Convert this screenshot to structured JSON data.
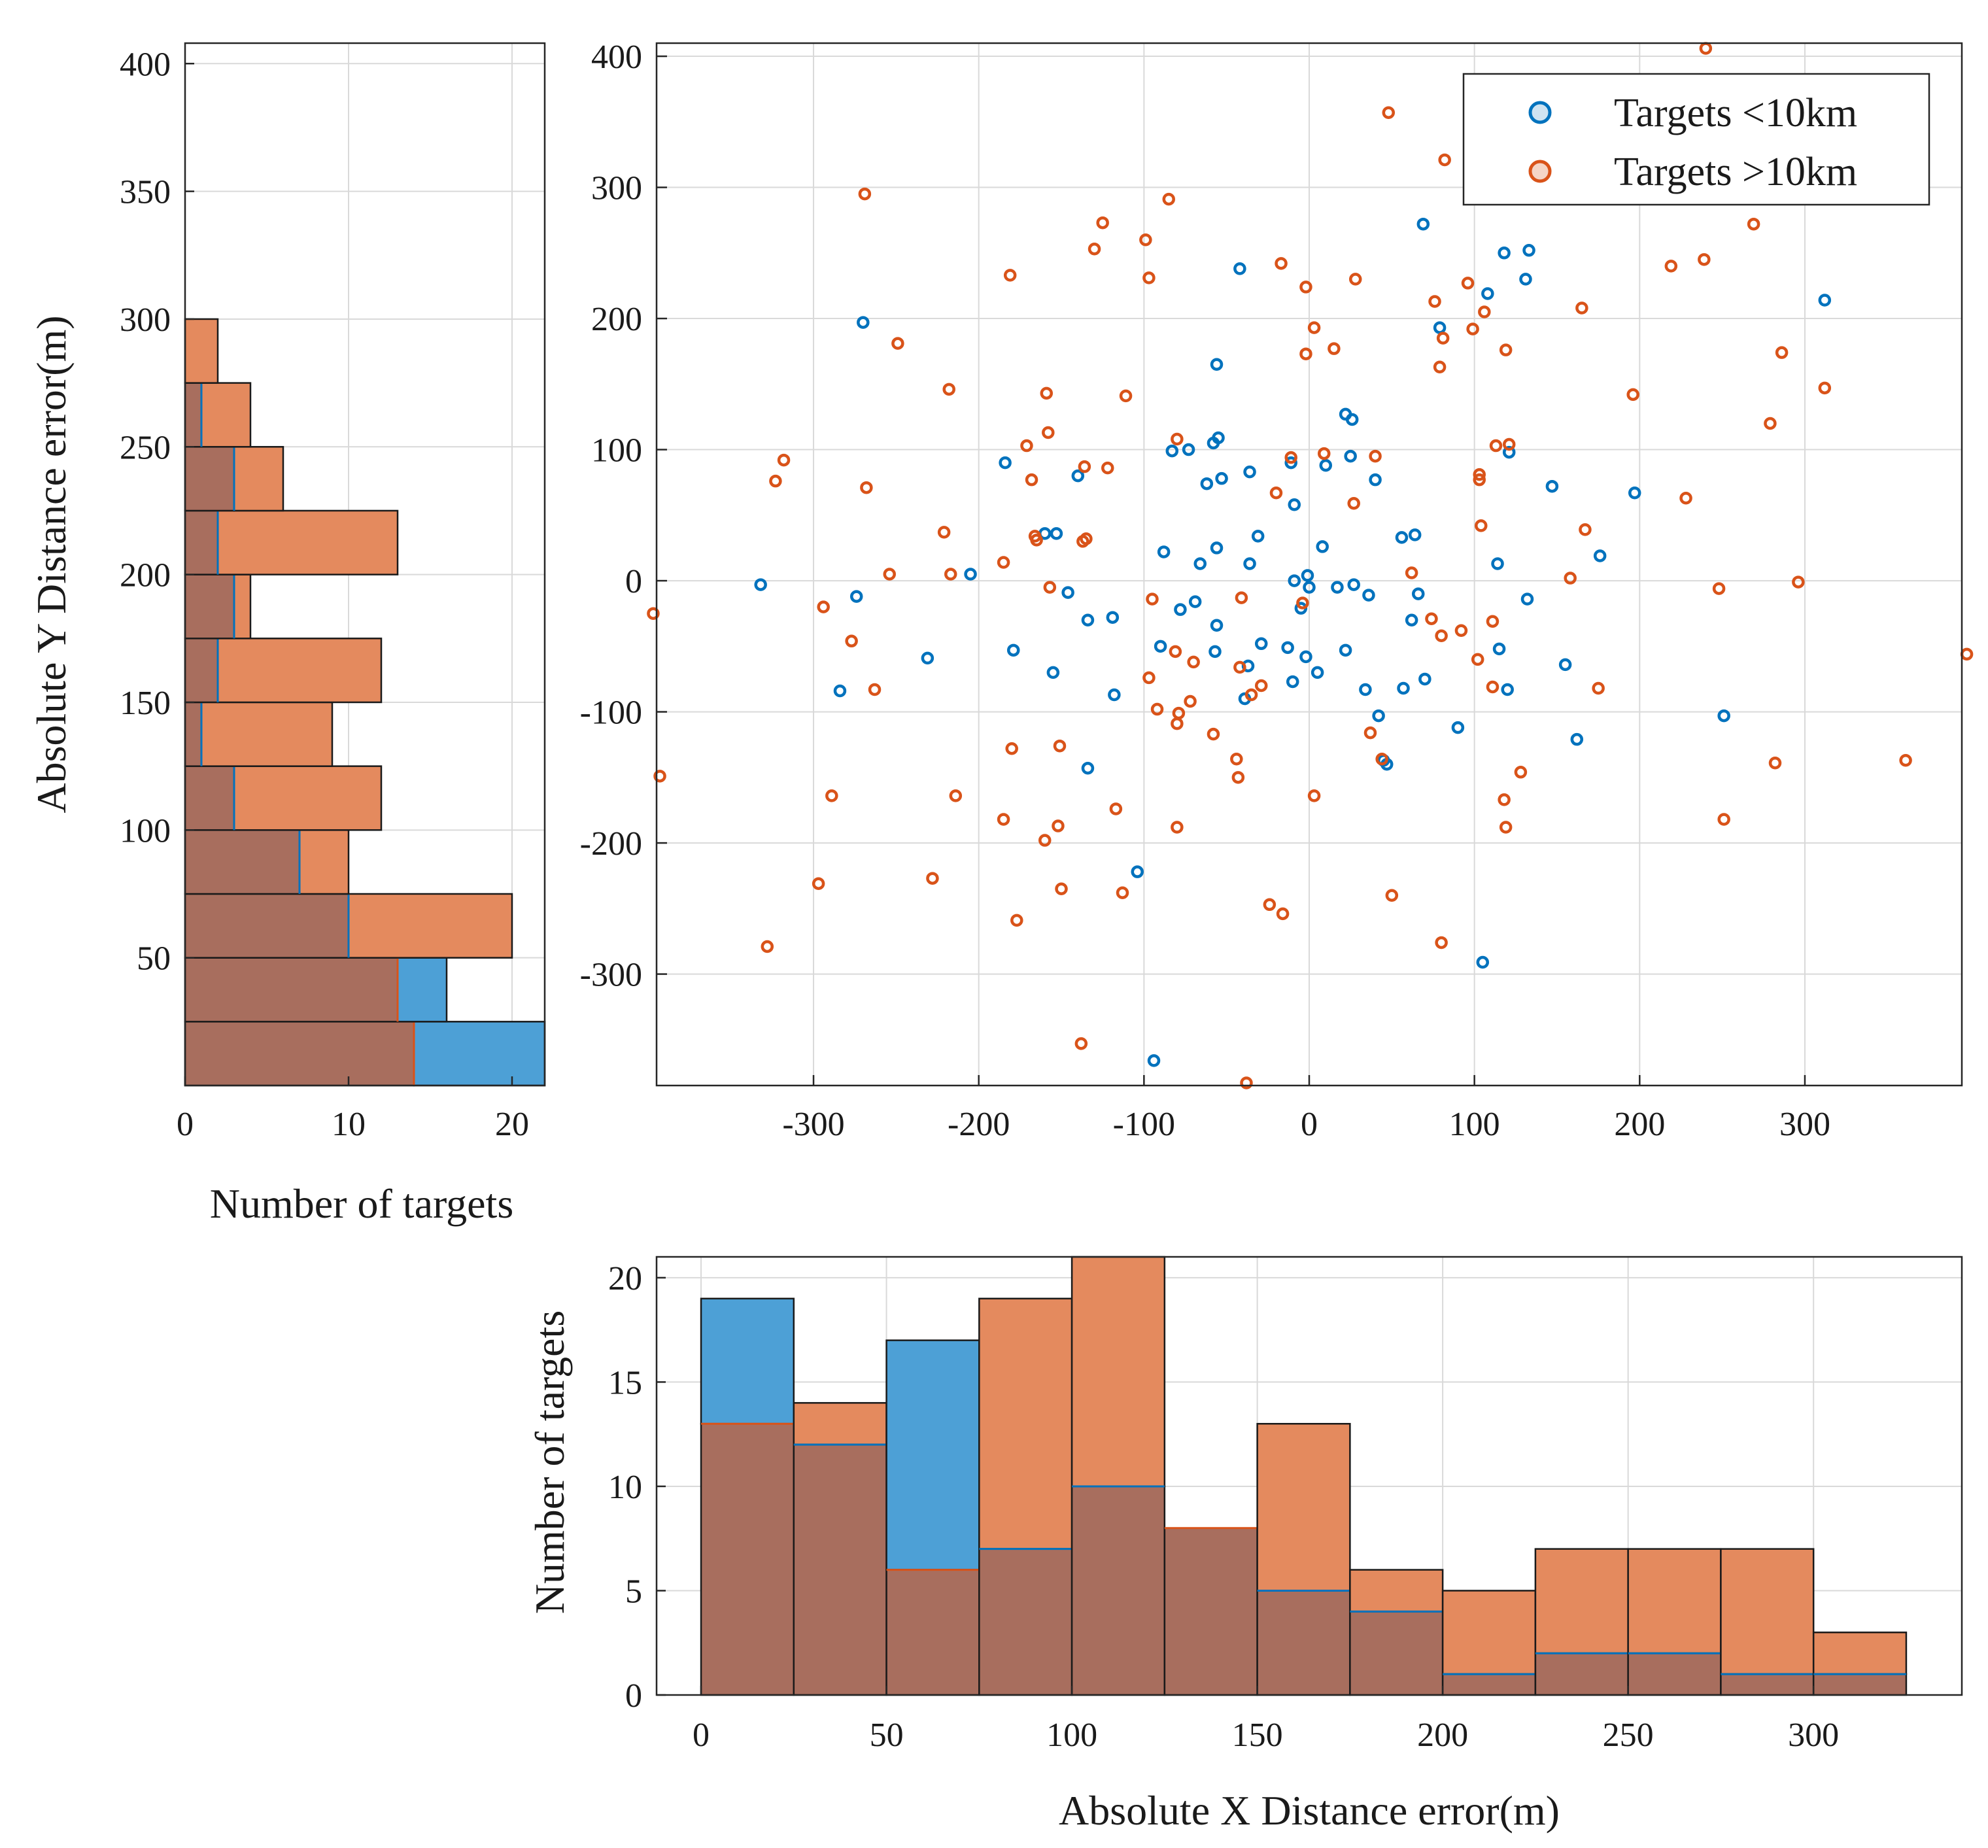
{
  "colors": {
    "series_a": "#0072BD",
    "series_a_fill": "#4DA0D6",
    "series_b": "#D95319",
    "series_b_fill": "#E48A5E",
    "overlap_fill": "#A86E5E"
  },
  "chart_data": [
    {
      "id": "scatter",
      "type": "scatter",
      "title": "",
      "xlabel": "",
      "ylabel": "",
      "xlim": [
        -395,
        395
      ],
      "ylim": [
        -385,
        410
      ],
      "xticks": [
        -300,
        -200,
        -100,
        0,
        100,
        200,
        300
      ],
      "yticks": [
        -300,
        -200,
        -100,
        0,
        100,
        200,
        300,
        400
      ],
      "grid": true,
      "legend": {
        "placement": "top-right",
        "entries": [
          "Targets <10km",
          "Targets >10km"
        ]
      },
      "series": [
        {
          "name": "Targets <10km",
          "points": [
            [
              -332,
              -3
            ],
            [
              -270,
              197
            ],
            [
              -274,
              -12
            ],
            [
              -284,
              -84
            ],
            [
              -231,
              -59
            ],
            [
              -205,
              5
            ],
            [
              -184,
              90
            ],
            [
              -179,
              -53
            ],
            [
              -160,
              36
            ],
            [
              -155,
              -70
            ],
            [
              -153,
              36
            ],
            [
              -146,
              -9
            ],
            [
              -140,
              80
            ],
            [
              -134,
              -30
            ],
            [
              -134,
              -143
            ],
            [
              -119,
              -28
            ],
            [
              -118,
              -87
            ],
            [
              -104,
              -222
            ],
            [
              -94,
              -366
            ],
            [
              -90,
              -50
            ],
            [
              -88,
              22
            ],
            [
              -83,
              99
            ],
            [
              -78,
              -22
            ],
            [
              -73,
              100
            ],
            [
              -69,
              -16
            ],
            [
              -66,
              13
            ],
            [
              -62,
              74
            ],
            [
              -58,
              105
            ],
            [
              -57,
              -54
            ],
            [
              -56,
              25
            ],
            [
              -56,
              -34
            ],
            [
              -56,
              165
            ],
            [
              -55,
              109
            ],
            [
              -53,
              78
            ],
            [
              -42,
              238
            ],
            [
              -39,
              -90
            ],
            [
              -37,
              -65
            ],
            [
              -36,
              13
            ],
            [
              -36,
              83
            ],
            [
              -31,
              34
            ],
            [
              -29,
              -48
            ],
            [
              -13,
              -51
            ],
            [
              -11,
              90
            ],
            [
              -10,
              -77
            ],
            [
              -9,
              0
            ],
            [
              -9,
              58
            ],
            [
              -5,
              -21
            ],
            [
              -1,
              4
            ],
            [
              -2,
              -58
            ],
            [
              0,
              -5
            ],
            [
              5,
              -70
            ],
            [
              8,
              26
            ],
            [
              10,
              88
            ],
            [
              17,
              -5
            ],
            [
              22,
              127
            ],
            [
              22,
              -53
            ],
            [
              25,
              95
            ],
            [
              26,
              123
            ],
            [
              27,
              -3
            ],
            [
              34,
              -83
            ],
            [
              36,
              -11
            ],
            [
              40,
              77
            ],
            [
              42,
              -103
            ],
            [
              45,
              -137
            ],
            [
              47,
              -140
            ],
            [
              56,
              33
            ],
            [
              57,
              -82
            ],
            [
              62,
              -30
            ],
            [
              64,
              35
            ],
            [
              66,
              -10
            ],
            [
              69,
              272
            ],
            [
              70,
              -75
            ],
            [
              79,
              193
            ],
            [
              90,
              -112
            ],
            [
              105,
              -291
            ],
            [
              108,
              219
            ],
            [
              114,
              13
            ],
            [
              115,
              -52
            ],
            [
              118,
              250
            ],
            [
              120,
              -83
            ],
            [
              121,
              98
            ],
            [
              131,
              230
            ],
            [
              132,
              -14
            ],
            [
              133,
              252
            ],
            [
              147,
              72
            ],
            [
              155,
              -64
            ],
            [
              162,
              -121
            ],
            [
              176,
              19
            ],
            [
              197,
              67
            ],
            [
              251,
              -103
            ],
            [
              312,
              214
            ]
          ]
        },
        {
          "name": "Targets >10km",
          "points": [
            [
              -397,
              -25
            ],
            [
              -393,
              -149
            ],
            [
              -323,
              76
            ],
            [
              -318,
              92
            ],
            [
              -328,
              -279
            ],
            [
              -297,
              -231
            ],
            [
              -294,
              -20
            ],
            [
              -289,
              -164
            ],
            [
              -277,
              -46
            ],
            [
              -269,
              295
            ],
            [
              -268,
              71
            ],
            [
              -263,
              -83
            ],
            [
              -254,
              5
            ],
            [
              -249,
              181
            ],
            [
              -228,
              -227
            ],
            [
              -221,
              37
            ],
            [
              -218,
              146
            ],
            [
              -217,
              5
            ],
            [
              -214,
              -164
            ],
            [
              -185,
              -182
            ],
            [
              -185,
              14
            ],
            [
              -181,
              233
            ],
            [
              -180,
              -128
            ],
            [
              -177,
              -259
            ],
            [
              -171,
              103
            ],
            [
              -168,
              77
            ],
            [
              -166,
              34
            ],
            [
              -165,
              31
            ],
            [
              -160,
              -198
            ],
            [
              -159,
              143
            ],
            [
              -158,
              113
            ],
            [
              -157,
              -5
            ],
            [
              -152,
              -187
            ],
            [
              -151,
              -126
            ],
            [
              -150,
              -235
            ],
            [
              -138,
              -353
            ],
            [
              -137,
              30
            ],
            [
              -136,
              87
            ],
            [
              -135,
              32
            ],
            [
              -130,
              253
            ],
            [
              -125,
              273
            ],
            [
              -122,
              86
            ],
            [
              -117,
              -174
            ],
            [
              -113,
              -238
            ],
            [
              -111,
              141
            ],
            [
              -99,
              260
            ],
            [
              -97,
              -74
            ],
            [
              -97,
              231
            ],
            [
              -95,
              -14
            ],
            [
              -92,
              -98
            ],
            [
              -85,
              291
            ],
            [
              -81,
              -54
            ],
            [
              -80,
              108
            ],
            [
              -80,
              -188
            ],
            [
              -80,
              -109
            ],
            [
              -79,
              -101
            ],
            [
              -72,
              -92
            ],
            [
              -70,
              -62
            ],
            [
              -58,
              -117
            ],
            [
              -44,
              -136
            ],
            [
              -43,
              -150
            ],
            [
              -42,
              -66
            ],
            [
              -41,
              -13
            ],
            [
              -38,
              -383
            ],
            [
              -35,
              -87
            ],
            [
              -29,
              -80
            ],
            [
              -24,
              -247
            ],
            [
              -20,
              67
            ],
            [
              -17,
              242
            ],
            [
              -16,
              -254
            ],
            [
              -11,
              94
            ],
            [
              -4,
              -17
            ],
            [
              -2,
              224
            ],
            [
              -2,
              173
            ],
            [
              3,
              193
            ],
            [
              3,
              -164
            ],
            [
              9,
              97
            ],
            [
              15,
              177
            ],
            [
              27,
              59
            ],
            [
              28,
              230
            ],
            [
              37,
              -116
            ],
            [
              40,
              95
            ],
            [
              44,
              -136
            ],
            [
              48,
              357
            ],
            [
              50,
              -240
            ],
            [
              62,
              6
            ],
            [
              74,
              -29
            ],
            [
              76,
              213
            ],
            [
              79,
              163
            ],
            [
              80,
              -42
            ],
            [
              80,
              -276
            ],
            [
              81,
              185
            ],
            [
              82,
              321
            ],
            [
              92,
              -38
            ],
            [
              96,
              227
            ],
            [
              99,
              192
            ],
            [
              102,
              -60
            ],
            [
              103,
              77
            ],
            [
              103,
              81
            ],
            [
              104,
              42
            ],
            [
              106,
              205
            ],
            [
              111,
              -31
            ],
            [
              111,
              -81
            ],
            [
              113,
              103
            ],
            [
              118,
              -167
            ],
            [
              119,
              -188
            ],
            [
              119,
              176
            ],
            [
              121,
              104
            ],
            [
              128,
              -146
            ],
            [
              158,
              2
            ],
            [
              165,
              208
            ],
            [
              167,
              39
            ],
            [
              175,
              -82
            ],
            [
              196,
              142
            ],
            [
              219,
              240
            ],
            [
              228,
              63
            ],
            [
              239,
              245
            ],
            [
              240,
              406
            ],
            [
              248,
              -6
            ],
            [
              251,
              -182
            ],
            [
              269,
              272
            ],
            [
              279,
              120
            ],
            [
              282,
              -139
            ],
            [
              286,
              174
            ],
            [
              296,
              -1
            ],
            [
              312,
              147
            ],
            [
              361,
              -137
            ],
            [
              398,
              -56
            ]
          ]
        }
      ]
    },
    {
      "id": "y-histogram",
      "type": "bar",
      "orientation": "horizontal",
      "title": "",
      "xlabel": "Number of targets",
      "ylabel": "Absolute Y Distance error(m)",
      "xlim": [
        0,
        22
      ],
      "ylim": [
        0,
        408
      ],
      "xticks": [
        0,
        10,
        20
      ],
      "yticks": [
        50,
        100,
        150,
        200,
        250,
        300,
        350,
        400
      ],
      "bin_width": 25,
      "bin_edges_start": 0,
      "grid": true,
      "series": [
        {
          "name": "Targets <10km",
          "values": [
            22,
            16,
            10,
            7,
            3,
            1,
            2,
            3,
            2,
            3,
            1,
            0,
            0
          ]
        },
        {
          "name": "Targets >10km",
          "values": [
            14,
            13,
            20,
            10,
            12,
            9,
            12,
            4,
            13,
            6,
            4,
            2,
            0
          ]
        }
      ]
    },
    {
      "id": "x-histogram",
      "type": "bar",
      "orientation": "vertical",
      "title": "",
      "xlabel": "Absolute X Distance error(m)",
      "ylabel": "Number of targets",
      "xlim": [
        -12,
        340
      ],
      "ylim": [
        0,
        21
      ],
      "xticks": [
        0,
        50,
        100,
        150,
        200,
        250,
        300
      ],
      "yticks": [
        0,
        5,
        10,
        15,
        20
      ],
      "bin_width": 25,
      "bin_edges_start": 0,
      "grid": true,
      "series": [
        {
          "name": "Targets <10km",
          "values": [
            19,
            12,
            17,
            7,
            10,
            8,
            5,
            4,
            1,
            2,
            2,
            1,
            1
          ]
        },
        {
          "name": "Targets >10km",
          "values": [
            13,
            14,
            6,
            19,
            21,
            8,
            13,
            6,
            5,
            7,
            7,
            7,
            3
          ]
        }
      ]
    }
  ]
}
